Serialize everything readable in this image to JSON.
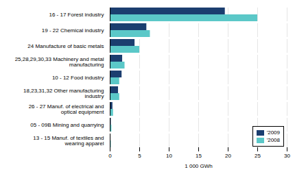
{
  "chart_data": {
    "type": "bar",
    "orientation": "horizontal",
    "categories": [
      "16 - 17 Forest industry",
      "19 - 22 Chemical industry",
      "24 Manufacture of basic metals",
      "25,28,29,30,33 Machinery and metal\nmanufacturing",
      "10 - 12 Food industry",
      "18,23,31,32 Other manufacturing\nindustry",
      "26 - 27 Manuf. of electrical and\noptical equipment",
      "05 - 09B Mining and quarrying",
      "13 - 15 Manuf. of textiles and\nwearing apparel"
    ],
    "series": [
      {
        "name": "'2009",
        "color": "#1b3e6f",
        "values": [
          19.5,
          6.2,
          4.2,
          2.1,
          2.0,
          1.4,
          0.45,
          0.18,
          0.12
        ]
      },
      {
        "name": "'2008",
        "color": "#5bc8c8",
        "values": [
          25.0,
          6.8,
          5.0,
          2.5,
          1.6,
          1.6,
          0.55,
          0.28,
          0.18
        ]
      }
    ],
    "xlabel": "1 000 GWh",
    "xlim": [
      0,
      30
    ],
    "xticks": [
      0,
      5,
      10,
      15,
      20,
      25,
      30
    ],
    "grid": true,
    "legend": "lower right"
  }
}
